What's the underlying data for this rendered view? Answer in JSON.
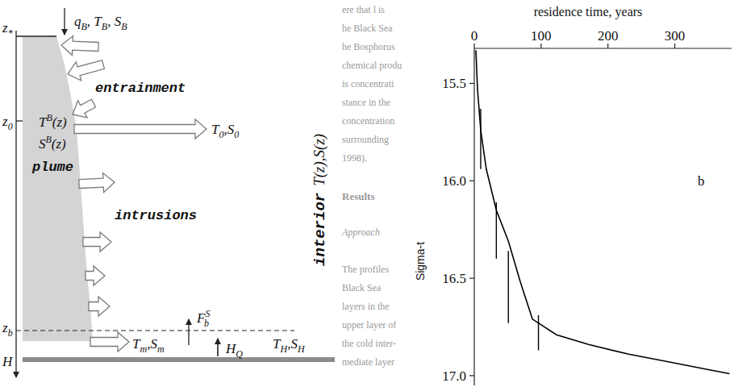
{
  "diagram": {
    "depth_labels": [
      [
        "z",
        {
          "sub": "*"
        }
      ],
      [
        "z",
        {
          "sub": "0"
        }
      ],
      [
        "z",
        {
          "sub": "b"
        }
      ],
      [
        "H"
      ]
    ],
    "labels": [
      [
        "q",
        {
          "sub": "B"
        },
        ", T",
        {
          "sub": "B"
        },
        ", S",
        {
          "sub": "B"
        }
      ],
      [
        "T",
        {
          "sup": "B"
        },
        "(z)"
      ],
      [
        "S",
        {
          "sup": "B"
        },
        "(z)"
      ],
      [
        "T",
        {
          "sub": "0"
        },
        ",S",
        {
          "sub": "0"
        }
      ],
      [
        "F",
        {
          "sub": "b",
          "sup": "S"
        }
      ],
      [
        "T",
        {
          "sub": "m"
        },
        ",S",
        {
          "sub": "m"
        }
      ],
      [
        "H",
        {
          "sub": "Q"
        }
      ],
      [
        "T",
        {
          "sub": "H"
        },
        ",S",
        {
          "sub": "H"
        }
      ]
    ],
    "region_labels": [
      "entrainment",
      "plume",
      "intrusions"
    ],
    "interior": [
      "interior",
      "T(z),S(z)"
    ]
  },
  "page_text": {
    "lines_before": [
      "ere that l is",
      "he Black Sea",
      "he Bosphorus",
      "chemical produ",
      "is concentrati",
      "stance in the",
      "concentration",
      "surrounding",
      "1998)."
    ],
    "heading": "Results",
    "subheading": "Approach",
    "lines_after": [
      "The profiles",
      "Black Sea",
      "layers in the",
      "upper layer of",
      "the cold inter-",
      "mediate layer"
    ]
  },
  "chart_data": {
    "type": "line",
    "x_label": "residence time, years",
    "y_label": "Sigma-t",
    "annotation": "b",
    "color": "#000000",
    "x": [
      2.4,
      4.8,
      9.6,
      18,
      33,
      51,
      69,
      87,
      123,
      171,
      231,
      292,
      352,
      382
    ],
    "values": [
      15.33,
      15.53,
      15.74,
      15.94,
      16.15,
      16.31,
      16.52,
      16.71,
      16.79,
      16.84,
      16.89,
      16.93,
      16.97,
      16.99
    ],
    "error_bars": {
      "x": [
        9.6,
        33,
        51,
        96
      ],
      "low": [
        15.63,
        16.11,
        16.36,
        16.69
      ],
      "high": [
        15.94,
        16.4,
        16.73,
        16.87
      ]
    },
    "xlim": [
      0,
      385
    ],
    "ylim": [
      17.05,
      15.32
    ],
    "xticks": [
      0,
      100,
      200,
      300
    ],
    "yticks": [
      15.5,
      {
        "value": 16,
        "label": "16.0"
      },
      16.5,
      {
        "value": 17,
        "label": "17.0"
      }
    ]
  }
}
